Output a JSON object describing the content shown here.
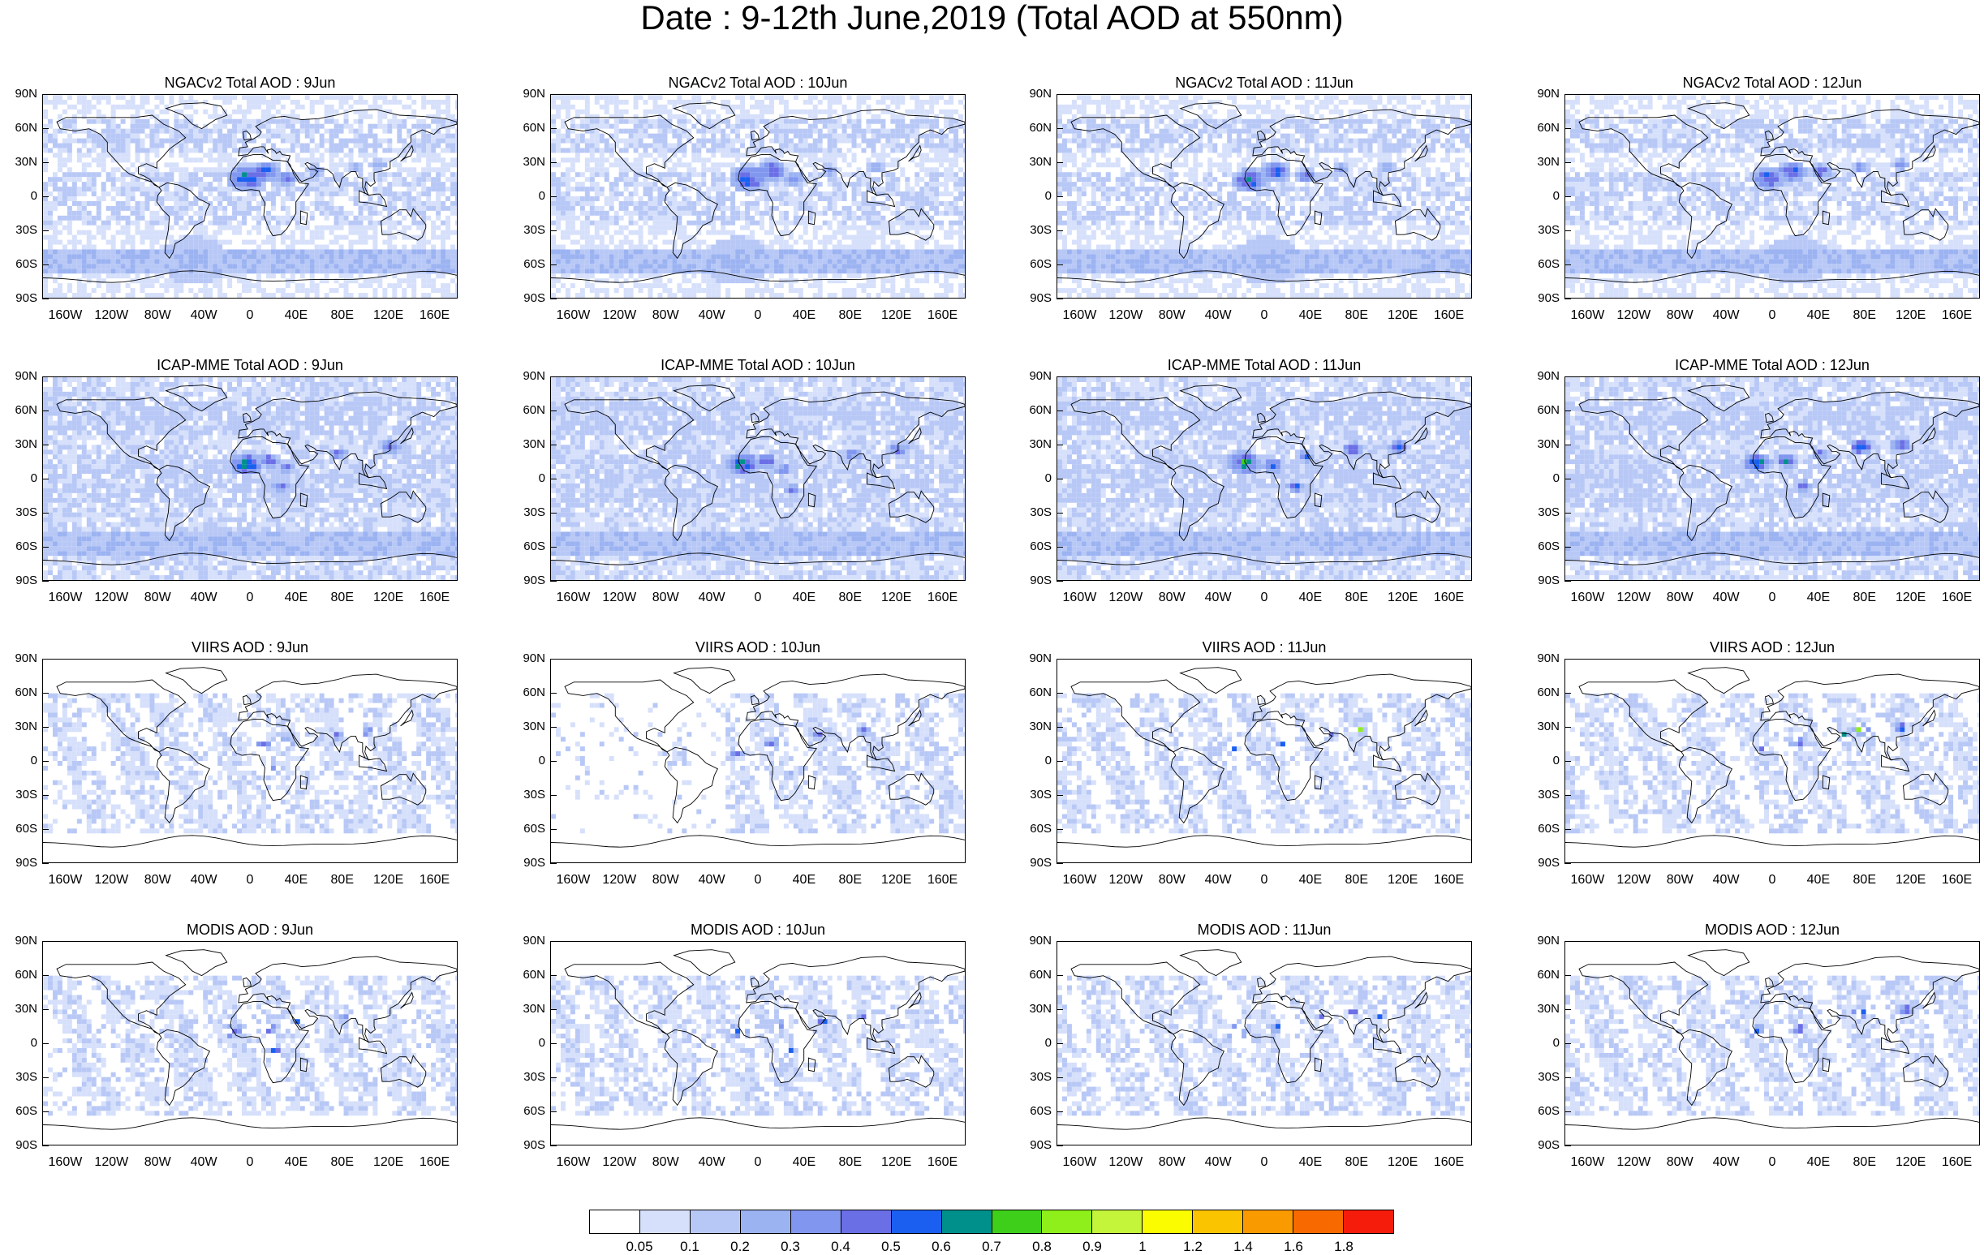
{
  "title": "Date : 9-12th June,2019 (Total AOD at 550nm)",
  "rows": [
    {
      "product": "ngac",
      "titles": [
        "NGACv2 Total AOD : 9Jun",
        "NGACv2 Total AOD : 10Jun",
        "NGACv2 Total AOD : 11Jun",
        "NGACv2 Total AOD : 12Jun"
      ]
    },
    {
      "product": "icap",
      "titles": [
        "ICAP-MME Total AOD : 9Jun",
        "ICAP-MME Total AOD : 10Jun",
        "ICAP-MME Total AOD : 11Jun",
        "ICAP-MME Total AOD : 12Jun"
      ]
    },
    {
      "product": "viirs",
      "titles": [
        "VIIRS AOD : 9Jun",
        "VIIRS AOD : 10Jun",
        "VIIRS AOD : 11Jun",
        "VIIRS AOD : 12Jun"
      ]
    },
    {
      "product": "modis",
      "titles": [
        "MODIS AOD : 9Jun",
        "MODIS AOD : 10Jun",
        "MODIS AOD : 11Jun",
        "MODIS AOD : 12Jun"
      ]
    }
  ],
  "lat_labels": [
    "90N",
    "60N",
    "30N",
    "0",
    "30S",
    "60S",
    "90S"
  ],
  "lon_labels": [
    "160W",
    "120W",
    "80W",
    "40W",
    "0",
    "40E",
    "80E",
    "120E",
    "160E"
  ],
  "colorbar": {
    "labels": [
      "0.05",
      "0.1",
      "0.2",
      "0.3",
      "0.4",
      "0.5",
      "0.6",
      "0.7",
      "0.8",
      "0.9",
      "1",
      "1.2",
      "1.4",
      "1.6",
      "1.8"
    ],
    "colors": [
      "#ffffff",
      "#d6e0fb",
      "#b8c8f6",
      "#9cb3f2",
      "#8197ef",
      "#6b6fe6",
      "#1a5ff0",
      "#00908c",
      "#3ecf1a",
      "#8eef1a",
      "#c4f53a",
      "#fcfc00",
      "#fbc400",
      "#f99a00",
      "#f86a00",
      "#f51c0c"
    ]
  }
}
